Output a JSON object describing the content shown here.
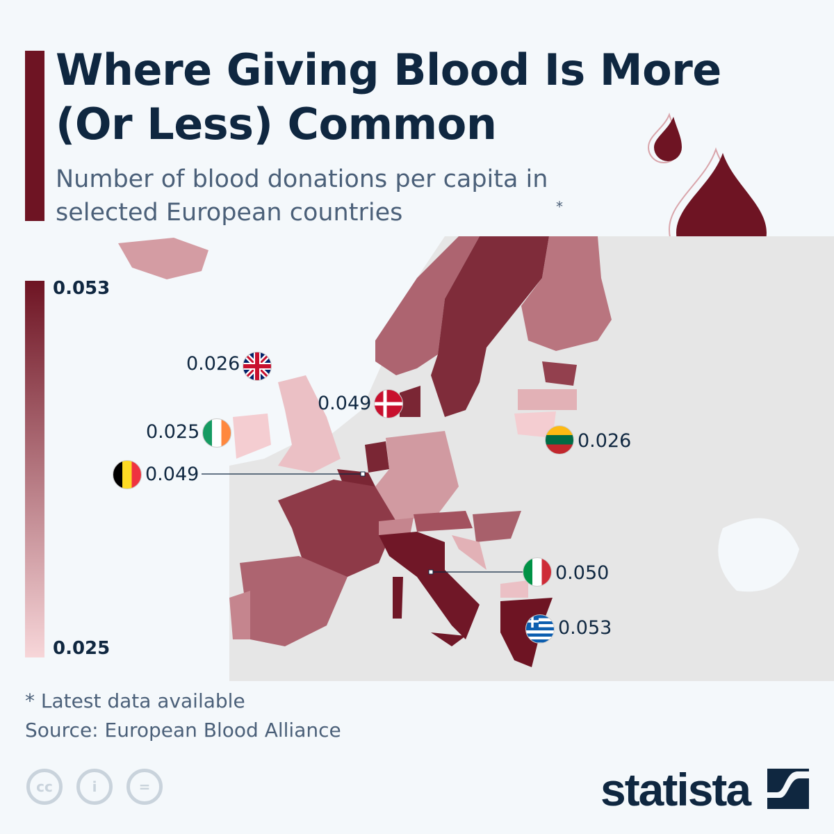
{
  "header": {
    "title": "Where Giving Blood Is More (Or Less) Common",
    "subtitle": "Number of blood donations per capita in selected European countries",
    "subtitle_mark": "*"
  },
  "legend": {
    "max": "0.053",
    "min": "0.025",
    "color_max": "#6e1423",
    "color_min": "#f7d6d9"
  },
  "chart_data": {
    "type": "choropleth",
    "title": "Where Giving Blood Is More (Or Less) Common",
    "subtitle": "Number of blood donations per capita in selected European countries",
    "range": [
      0.025,
      0.053
    ],
    "labeled_countries": [
      {
        "country": "United Kingdom",
        "flag": "uk-flag",
        "value": "0.026"
      },
      {
        "country": "Denmark",
        "flag": "denmark-flag",
        "value": "0.049"
      },
      {
        "country": "Ireland",
        "flag": "ireland-flag",
        "value": "0.025"
      },
      {
        "country": "Belgium",
        "flag": "belgium-flag",
        "value": "0.049"
      },
      {
        "country": "Lithuania",
        "flag": "lithuania-flag",
        "value": "0.026"
      },
      {
        "country": "Italy",
        "flag": "italy-flag",
        "value": "0.050"
      },
      {
        "country": "Greece",
        "flag": "greece-flag",
        "value": "0.053"
      }
    ]
  },
  "footer": {
    "note": "* Latest data available",
    "source": "Source: European Blood Alliance",
    "brand": "statista"
  }
}
